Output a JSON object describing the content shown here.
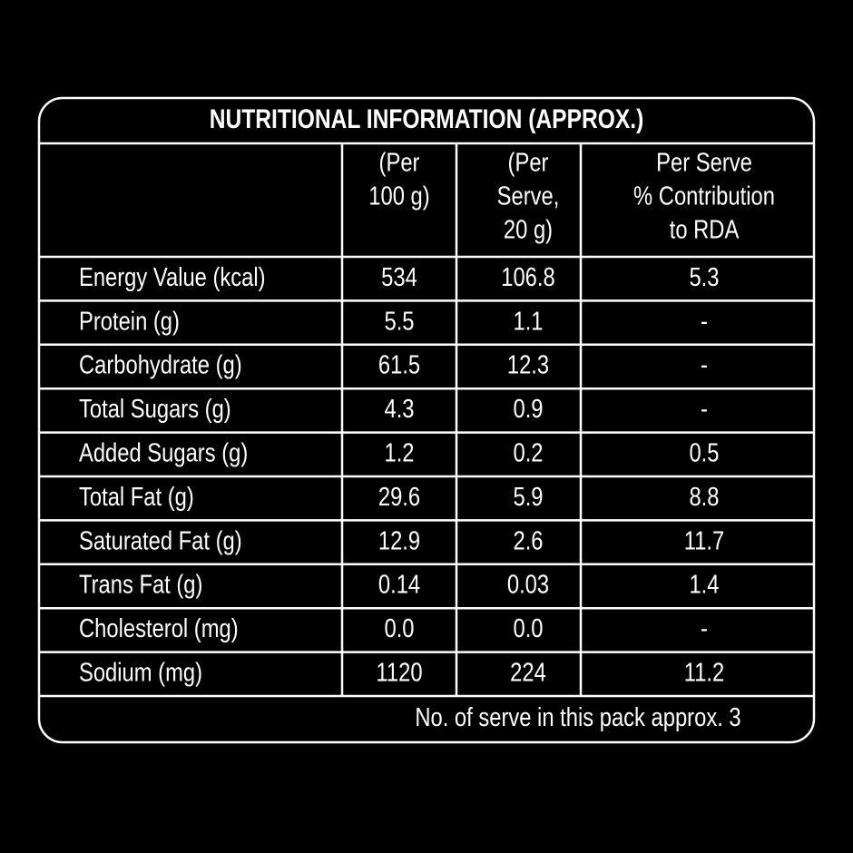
{
  "table": {
    "title": "NUTRITIONAL INFORMATION (APPROX.)",
    "header": [
      [
        "(Per",
        "100 g)"
      ],
      [
        "(Per",
        "Serve,",
        "20 g)"
      ],
      [
        "Per Serve",
        "% Contribution",
        "to RDA"
      ]
    ],
    "rows": [
      [
        "Energy Value (kcal)",
        "534",
        "106.8",
        "5.3"
      ],
      [
        "Protein (g)",
        "5.5",
        "1.1",
        "-"
      ],
      [
        "Carbohydrate (g)",
        "61.5",
        "12.3",
        "-"
      ],
      [
        "Total Sugars (g)",
        "4.3",
        "0.9",
        "-"
      ],
      [
        "Added Sugars (g)",
        "1.2",
        "0.2",
        "0.5"
      ],
      [
        "Total Fat (g)",
        "29.6",
        "5.9",
        "8.8"
      ],
      [
        "Saturated Fat (g)",
        "12.9",
        "2.6",
        "11.7"
      ],
      [
        "Trans Fat (g)",
        "0.14",
        "0.03",
        "1.4"
      ],
      [
        "Cholesterol (mg)",
        "0.0",
        "0.0",
        "-"
      ],
      [
        "Sodium (mg)",
        "1120",
        "224",
        "11.2"
      ]
    ],
    "footer": "No. of serve in this pack approx. 3"
  }
}
